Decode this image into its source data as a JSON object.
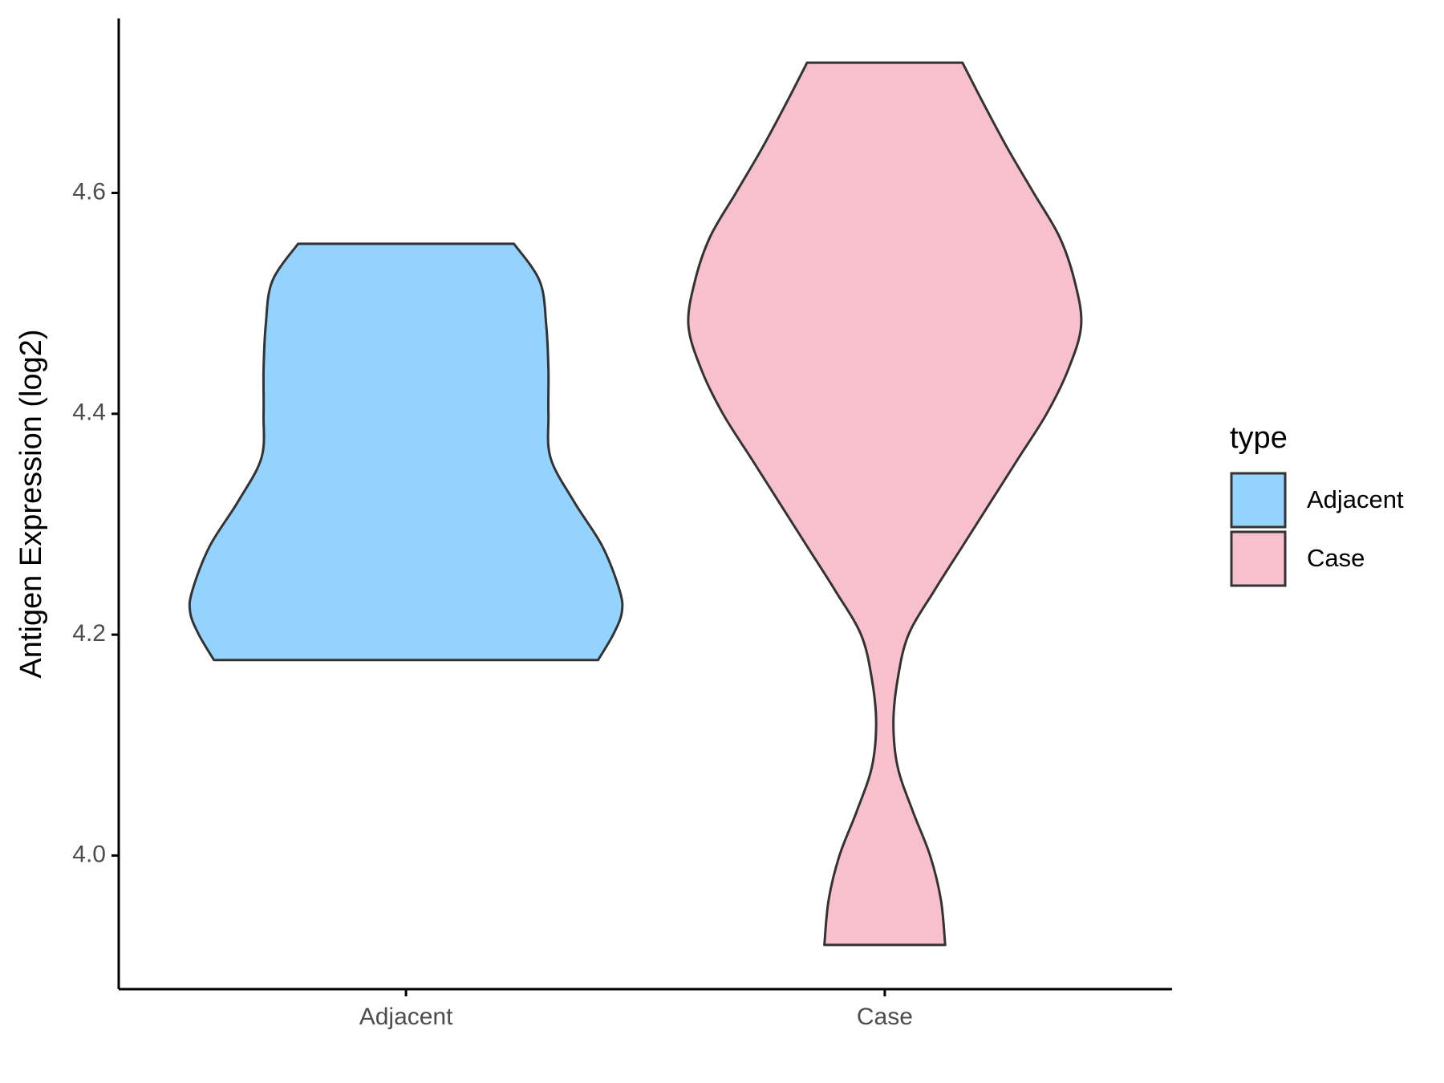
{
  "chart_data": {
    "type": "violin",
    "y_label": "Antigen Expression (log2)",
    "legend_title": "type",
    "categories": [
      "Adjacent",
      "Case"
    ],
    "ylim": [
      3.879,
      4.758
    ],
    "yticks": [
      {
        "value": 4,
        "label": "4.0"
      },
      4.2,
      4.4,
      4.6
    ],
    "series": [
      {
        "name": "Adjacent",
        "color": "#93d3fe",
        "y": [
          4.554,
          4.52,
          4.48,
          4.44,
          4.4,
          4.36,
          4.32,
          4.28,
          4.24,
          4.22,
          4.2,
          4.177
        ],
        "density": [
          0.5,
          0.62,
          0.65,
          0.66,
          0.66,
          0.67,
          0.78,
          0.91,
          0.99,
          1.0,
          0.96,
          0.89
        ]
      },
      {
        "name": "Case",
        "color": "#f8c0cc",
        "y": [
          4.718,
          4.68,
          4.64,
          4.6,
          4.56,
          4.52,
          4.48,
          4.44,
          4.4,
          4.36,
          4.32,
          4.28,
          4.24,
          4.2,
          4.16,
          4.12,
          4.08,
          4.04,
          4.0,
          3.96,
          3.919
        ],
        "density": [
          0.36,
          0.46,
          0.57,
          0.69,
          0.81,
          0.88,
          0.91,
          0.85,
          0.75,
          0.62,
          0.49,
          0.36,
          0.23,
          0.11,
          0.06,
          0.04,
          0.06,
          0.13,
          0.21,
          0.26,
          0.28
        ]
      }
    ]
  }
}
